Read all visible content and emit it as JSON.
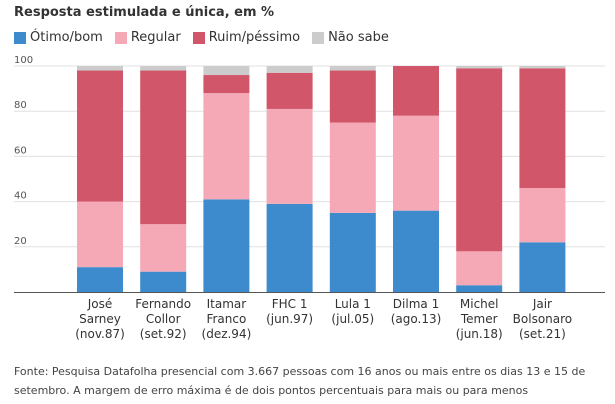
{
  "chart_data": {
    "type": "stacked-bar",
    "title": "Resposta estimulada e única, em %",
    "categories": [
      [
        "José",
        "Sarney",
        "(nov.87)"
      ],
      [
        "Fernando",
        "Collor",
        "(set.92)"
      ],
      [
        "Itamar",
        "Franco",
        "(dez.94)"
      ],
      [
        "FHC 1",
        "(jun.97)"
      ],
      [
        "Lula 1",
        "(jul.05)"
      ],
      [
        "Dilma 1",
        "(ago.13)"
      ],
      [
        "Michel",
        "Temer",
        "(jun.18)"
      ],
      [
        "Jair",
        "Bolsonaro",
        "(set.21)"
      ]
    ],
    "series": [
      {
        "name": "Ótimo/bom",
        "color": "#3d8bcd",
        "values": [
          11,
          9,
          41,
          39,
          35,
          36,
          3,
          22
        ]
      },
      {
        "name": "Regular",
        "color": "#f5a9b6",
        "values": [
          29,
          21,
          47,
          42,
          40,
          42,
          15,
          24
        ]
      },
      {
        "name": "Ruim/péssimo",
        "color": "#d1566a",
        "values": [
          58,
          68,
          8,
          16,
          23,
          22,
          81,
          53
        ]
      },
      {
        "name": "Não sabe",
        "color": "#cccccc",
        "values": [
          2,
          2,
          4,
          3,
          2,
          0,
          1,
          1
        ]
      }
    ],
    "ylim": [
      0,
      100
    ],
    "yticks": [
      20,
      40,
      60,
      80,
      100
    ],
    "grid": true,
    "legend_position": "top-left"
  },
  "source": "Fonte: Pesquisa Datafolha presencial com 3.667 pessoas com 16 anos ou mais entre os dias 13 e 15 de setembro. A margem de erro máxima é de dois pontos percentuais para mais ou para menos"
}
